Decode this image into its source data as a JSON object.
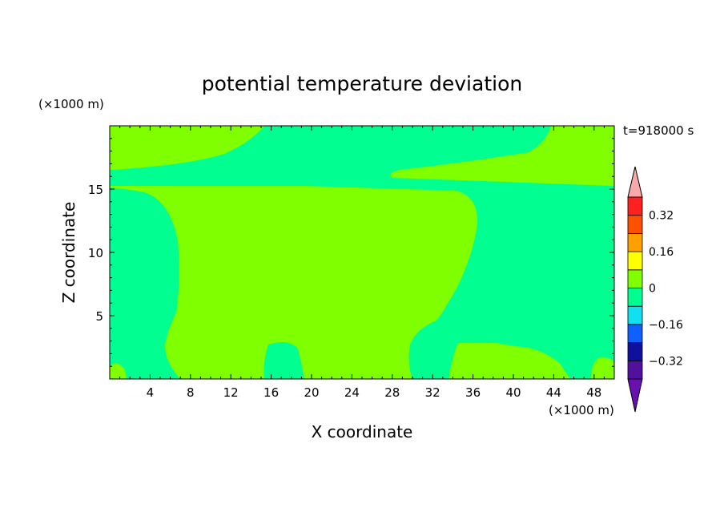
{
  "chart_data": {
    "type": "heatmap",
    "title": "potential temperature deviation",
    "xlabel": "X coordinate",
    "ylabel": "Z coordinate",
    "x_unit": "(×1000 m)",
    "y_unit": "(×1000 m)",
    "time_label": "t=918000 s",
    "xlim": [
      0,
      50
    ],
    "ylim": [
      0,
      20
    ],
    "x_ticks": [
      4,
      8,
      12,
      16,
      20,
      24,
      28,
      32,
      36,
      40,
      44,
      48
    ],
    "y_ticks": [
      5,
      10,
      15
    ],
    "colorbar": {
      "levels": [
        -0.4,
        -0.32,
        -0.24,
        -0.16,
        -0.08,
        0,
        0.08,
        0.16,
        0.24,
        0.32,
        0.4
      ],
      "colors": [
        "#52109e",
        "#10109e",
        "#1060ff",
        "#10e0f0",
        "#00ff90",
        "#80ff00",
        "#ffff00",
        "#ffa000",
        "#ff5000",
        "#ff2020"
      ],
      "under_color": "#6a10b0",
      "over_color": "#f7a8a8",
      "tick_labels": [
        "0.32",
        "0.16",
        "0",
        "−0.16",
        "−0.32"
      ],
      "tick_values": [
        0.32,
        0.16,
        0,
        -0.16,
        -0.32
      ]
    },
    "field_description_colors": {
      "positive_small": "#80ff00",
      "negative_small": "#00ff90"
    }
  }
}
